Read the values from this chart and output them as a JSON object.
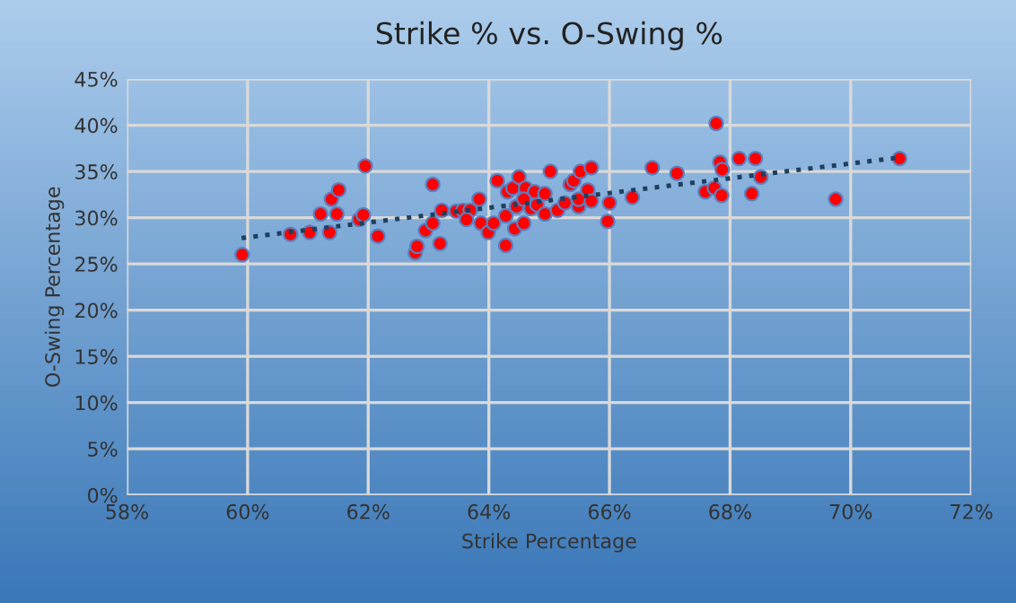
{
  "chart_data": {
    "type": "scatter",
    "title": "Strike % vs. O-Swing %",
    "xlabel": "Strike Percentage",
    "ylabel": "O-Swing Percentage",
    "series": [
      {
        "color": "#ff0000",
        "marker": "circle",
        "x": [
          59.91,
          60.71,
          61.03,
          61.36,
          61.21,
          61.48,
          61.39,
          61.51,
          61.85,
          61.92,
          61.95,
          62.16,
          62.78,
          62.81,
          62.95,
          63.07,
          63.07,
          63.19,
          63.22,
          63.46,
          63.57,
          63.69,
          63.63,
          63.84,
          63.87,
          63.99,
          64.08,
          64.14,
          64.28,
          64.28,
          64.31,
          64.43,
          64.4,
          64.46,
          64.5,
          64.61,
          64.76,
          64.58,
          64.7,
          64.58,
          64.93,
          65.02,
          64.8,
          64.93,
          65.14,
          65.26,
          65.35,
          65.41,
          65.52,
          65.49,
          65.49,
          65.64,
          65.7,
          65.7,
          66.0,
          65.97,
          66.38,
          66.71,
          67.12,
          67.77,
          67.83,
          67.87,
          67.59,
          67.74,
          67.86,
          68.15,
          68.42,
          68.51,
          68.36,
          69.75,
          70.81
        ],
        "values": [
          26.0,
          28.2,
          28.4,
          28.4,
          30.4,
          30.4,
          32.0,
          33.0,
          29.8,
          30.3,
          35.6,
          28.0,
          26.2,
          26.9,
          28.6,
          29.4,
          33.6,
          27.2,
          30.8,
          30.7,
          30.8,
          30.8,
          29.8,
          32.0,
          29.4,
          28.4,
          29.4,
          34.0,
          27.0,
          30.2,
          32.8,
          28.8,
          33.2,
          31.2,
          34.4,
          33.2,
          32.8,
          32.0,
          31.0,
          29.4,
          32.6,
          35.0,
          31.4,
          30.4,
          30.8,
          31.6,
          33.6,
          34.0,
          35.0,
          31.2,
          32.0,
          33.0,
          35.4,
          31.8,
          31.6,
          29.6,
          32.2,
          35.4,
          34.8,
          40.2,
          36.0,
          35.2,
          32.8,
          33.2,
          32.4,
          36.4,
          36.4,
          34.4,
          32.6,
          32.0,
          36.4
        ]
      },
      {
        "type": "line",
        "color": "#1f3f5f",
        "line_style": "dotted",
        "marker": "none",
        "x": [
          59.9,
          70.8
        ],
        "values": [
          27.8,
          36.5
        ]
      }
    ],
    "grid": true,
    "legend": false,
    "xlim": [
      58,
      72
    ],
    "xticks": [
      {
        "value": 58,
        "label": "58%"
      },
      {
        "value": 60,
        "label": "60%"
      },
      {
        "value": 62,
        "label": "62%"
      },
      {
        "value": 64,
        "label": "64%"
      },
      {
        "value": 66,
        "label": "66%"
      },
      {
        "value": 68,
        "label": "68%"
      },
      {
        "value": 70,
        "label": "70%"
      },
      {
        "value": 72,
        "label": "72%"
      }
    ],
    "ylim": [
      0,
      45
    ],
    "yticks": [
      {
        "value": 0,
        "label": "0%"
      },
      {
        "value": 5,
        "label": "5%"
      },
      {
        "value": 10,
        "label": "10%"
      },
      {
        "value": 15,
        "label": "15%"
      },
      {
        "value": 20,
        "label": "20%"
      },
      {
        "value": 25,
        "label": "25%"
      },
      {
        "value": 30,
        "label": "30%"
      },
      {
        "value": 35,
        "label": "35%"
      },
      {
        "value": 40,
        "label": "40%"
      },
      {
        "value": 45,
        "label": "45%"
      }
    ]
  }
}
